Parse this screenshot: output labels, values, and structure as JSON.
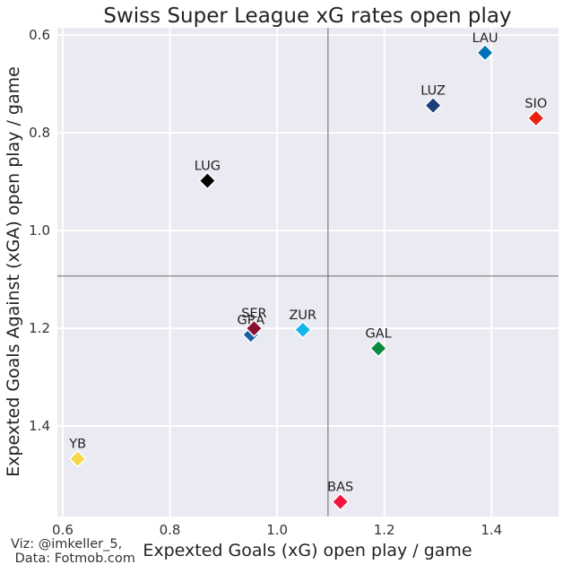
{
  "chart_data": {
    "type": "scatter",
    "title": "Swiss Super League xG rates open play",
    "xlabel": "Expexted Goals (xG) open play / game",
    "ylabel": "Expexted Goals Against (xGA) open play / game",
    "xlim": [
      0.59,
      1.525
    ],
    "ylim": [
      1.585,
      0.585
    ],
    "y_inverted": true,
    "xticks": [
      0.6,
      0.8,
      1.0,
      1.2,
      1.4
    ],
    "xtick_labels": [
      "0.6",
      "0.8",
      "1.0",
      "1.2",
      "1.4"
    ],
    "yticks": [
      0.6,
      0.8,
      1.0,
      1.2,
      1.4
    ],
    "ytick_labels": [
      "0.6",
      "0.8",
      "1.0",
      "1.2",
      "1.4"
    ],
    "grid": true,
    "reference_lines": {
      "x": 1.095,
      "y": 1.093
    },
    "points": [
      {
        "label": "LAU",
        "x": 1.388,
        "y": 0.636,
        "color": "#0070B8"
      },
      {
        "label": "LUZ",
        "x": 1.291,
        "y": 0.744,
        "color": "#1B3F7A"
      },
      {
        "label": "SIO",
        "x": 1.483,
        "y": 0.77,
        "color": "#E8220E"
      },
      {
        "label": "LUG",
        "x": 0.87,
        "y": 0.898,
        "color": "#000000"
      },
      {
        "label": "GRA",
        "x": 0.951,
        "y": 1.213,
        "color": "#1A5EA8"
      },
      {
        "label": "SER",
        "x": 0.957,
        "y": 1.2,
        "color": "#8B1030"
      },
      {
        "label": "ZUR",
        "x": 1.048,
        "y": 1.203,
        "color": "#14B4EA"
      },
      {
        "label": "GAL",
        "x": 1.189,
        "y": 1.241,
        "color": "#0B8A3E"
      },
      {
        "label": "YB",
        "x": 0.628,
        "y": 1.467,
        "color": "#F5D84B"
      },
      {
        "label": "BAS",
        "x": 1.118,
        "y": 1.555,
        "color": "#F5153C"
      }
    ]
  },
  "credits": {
    "line1": "Viz: @imkeller_5,",
    "line2": " Data: Fotmob.com"
  }
}
